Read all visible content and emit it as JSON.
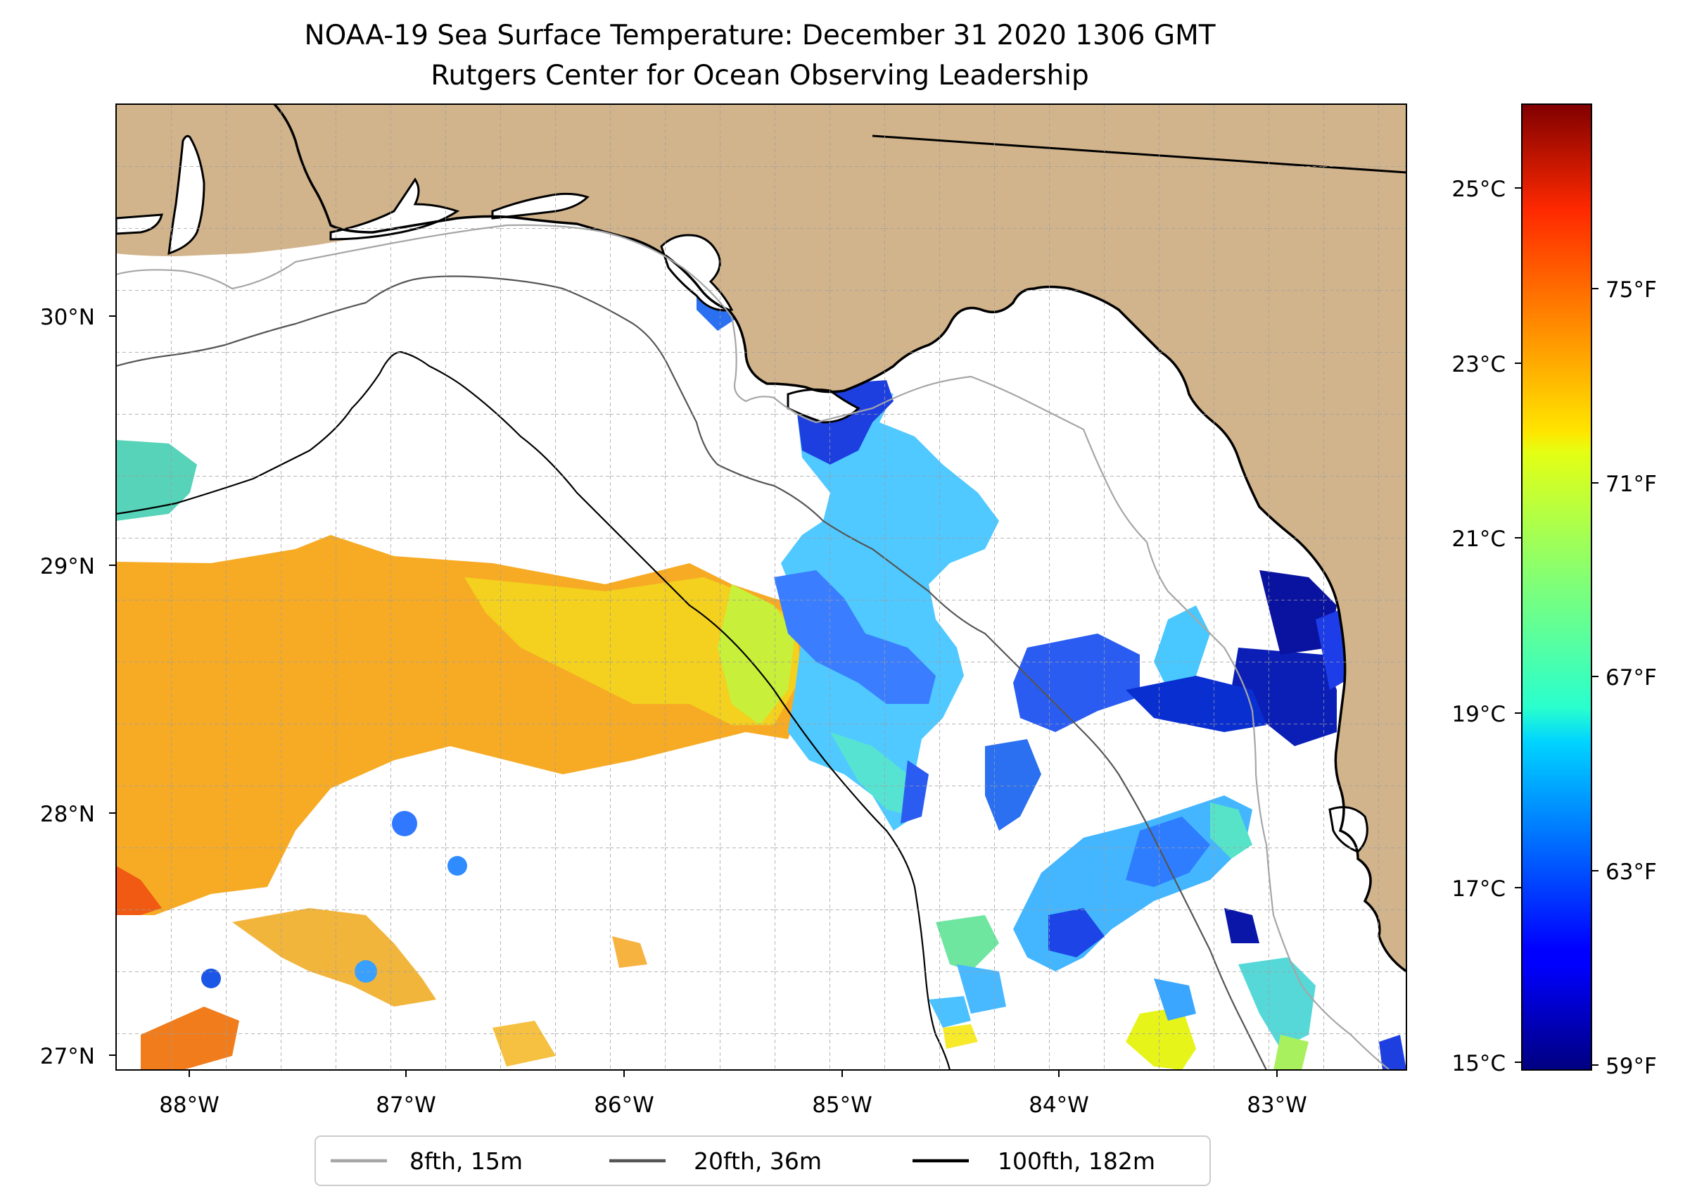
{
  "title": {
    "line1": "NOAA-19 Sea Surface Temperature: December 31 2020 1306 GMT",
    "line2": "Rutgers Center for Ocean Observing Leadership"
  },
  "map": {
    "longitude_range": [
      -88.3,
      -82.4
    ],
    "latitude_range": [
      26.93,
      30.85
    ],
    "lon_ticks": [
      "88°W",
      "87°W",
      "86°W",
      "85°W",
      "84°W",
      "83°W"
    ],
    "lat_ticks": [
      "30°N",
      "29°N",
      "28°N",
      "27°N"
    ],
    "land_color": "#d2b48c",
    "missing_data_color": "#ffffff",
    "lake_color": "#a9c4ea",
    "gridlines": true
  },
  "colorbar": {
    "colormap": "jet",
    "range_celsius": [
      15,
      26
    ],
    "celsius_ticks": [
      "25°C",
      "23°C",
      "21°C",
      "19°C",
      "17°C",
      "15°C"
    ],
    "fahrenheit_ticks": [
      "75°F",
      "71°F",
      "67°F",
      "63°F",
      "59°F"
    ]
  },
  "legend": {
    "placement": "bottom-center",
    "items": [
      {
        "label": "8fth, 15m",
        "color": "#a6a6a6"
      },
      {
        "label": "20fth, 36m",
        "color": "#555555"
      },
      {
        "label": "100fth, 182m",
        "color": "#000000"
      }
    ]
  }
}
